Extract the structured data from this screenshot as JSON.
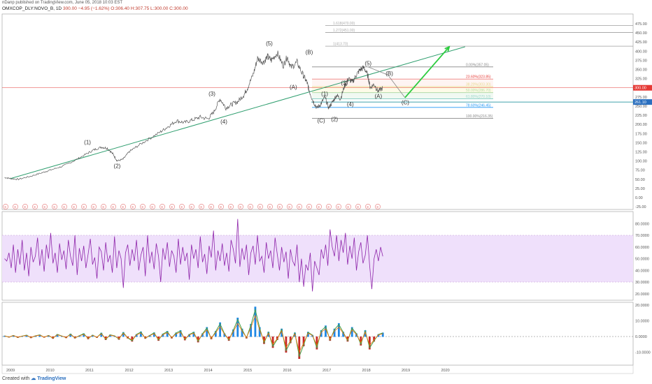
{
  "header": {
    "published_line": "nDanp published on TradingView.com, June 05, 2018 10:03 EST",
    "symbol_line": "OMXCOP_DLY:NOVO_B, 1D",
    "last": "300.00",
    "change": "−4.95 (−1.62%)",
    "open": "O:306.40",
    "high": "H:307.75",
    "low": "L:300.00",
    "close": "C:300.00"
  },
  "footer": {
    "created_with": "Created with",
    "brand": "TradingView"
  },
  "colors": {
    "price": "#555555",
    "trendline": "#2e9e6e",
    "projection_arrow": "#2ecc40",
    "rsi_line": "#8e24aa",
    "rsi_band": "#efe0fb",
    "fib_0": "#888888",
    "fib_236": "#e53935",
    "fib_382": "#c7b800",
    "fib_500": "#4caf50",
    "fib_618": "#26a69a",
    "fib_786": "#2196f3",
    "fib_100": "#888888",
    "current_price_line": "#e53935",
    "label_box": "#2a6fbf"
  },
  "chart_data": [
    {
      "type": "line",
      "name_display": "price",
      "x_axis_labels": [
        "2009",
        "2010",
        "2011",
        "2012",
        "2013",
        "2014",
        "2015",
        "2016",
        "2017",
        "2018",
        "2019",
        "2020"
      ],
      "x_years": [
        2009,
        2010,
        2011,
        2012,
        2013,
        2014,
        2015,
        2016,
        2017,
        2018,
        2019,
        2020
      ],
      "y_ticks": [
        475,
        450,
        425,
        400,
        375,
        350,
        325,
        300,
        275,
        250,
        225,
        200,
        175,
        150,
        125,
        100,
        75,
        50,
        25,
        0,
        -25
      ],
      "y_tick_labels": [
        "475.00",
        "450.00",
        "425.00",
        "400.00",
        "375.00",
        "350.00",
        "325.00",
        "300.00",
        "275.00",
        "250.00",
        "225.00",
        "200.00",
        "175.00",
        "150.00",
        "125.00",
        "100.00",
        "75.00",
        "50.00",
        "25.00",
        "0.00",
        "-25.00"
      ],
      "ylim": [
        -30,
        490
      ],
      "series": [
        {
          "x": [
            2008.85,
            2009.0,
            2009.2,
            2009.5,
            2009.8,
            2010.0,
            2010.3,
            2010.6,
            2010.9,
            2011.1,
            2011.3,
            2011.45,
            2011.6,
            2011.7,
            2011.85,
            2012.0,
            2012.2,
            2012.5,
            2012.8,
            2013.0,
            2013.2,
            2013.4,
            2013.6,
            2013.8,
            2014.0,
            2014.15,
            2014.3,
            2014.45,
            2014.6,
            2014.75,
            2014.9,
            2015.0,
            2015.15,
            2015.25,
            2015.4,
            2015.5,
            2015.6,
            2015.75,
            2015.9,
            2016.0,
            2016.1,
            2016.25,
            2016.4,
            2016.5,
            2016.55,
            2016.65,
            2016.75,
            2016.85,
            2016.95,
            2017.05,
            2017.15,
            2017.25,
            2017.35,
            2017.45,
            2017.55,
            2017.65,
            2017.75,
            2017.85,
            2017.95,
            2018.05,
            2018.1,
            2018.2,
            2018.3,
            2018.42
          ],
          "values": [
            55,
            52,
            50,
            58,
            68,
            75,
            85,
            100,
            118,
            130,
            138,
            135,
            118,
            100,
            105,
            125,
            140,
            160,
            180,
            195,
            210,
            205,
            212,
            220,
            215,
            235,
            270,
            245,
            255,
            262,
            280,
            300,
            340,
            380,
            370,
            385,
            375,
            395,
            360,
            385,
            355,
            370,
            335,
            315,
            295,
            265,
            245,
            255,
            275,
            245,
            262,
            280,
            270,
            305,
            325,
            315,
            335,
            350,
            355,
            330,
            300,
            310,
            290,
            300
          ]
        }
      ],
      "trendline": {
        "x": [
          2009.0,
          2020.5
        ],
        "values": [
          52,
          412
        ]
      },
      "wave_labels": [
        {
          "text": "(1)",
          "x": 2010.95,
          "y": 152
        },
        {
          "text": "(2)",
          "x": 2011.7,
          "y": 87
        },
        {
          "text": "(3)",
          "x": 2014.1,
          "y": 284
        },
        {
          "text": "(4)",
          "x": 2014.4,
          "y": 208
        },
        {
          "text": "(5)",
          "x": 2015.55,
          "y": 422
        },
        {
          "text": "(A)",
          "x": 2016.15,
          "y": 302
        },
        {
          "text": "(B)",
          "x": 2016.55,
          "y": 398
        },
        {
          "text": "(C)",
          "x": 2016.85,
          "y": 211
        },
        {
          "text": "(1)",
          "x": 2016.95,
          "y": 284
        },
        {
          "text": "(2)",
          "x": 2017.2,
          "y": 215
        },
        {
          "text": "(3)",
          "x": 2017.45,
          "y": 314
        },
        {
          "text": "(4)",
          "x": 2017.6,
          "y": 256
        },
        {
          "text": "(5)",
          "x": 2018.05,
          "y": 367
        },
        {
          "text": "(A)",
          "x": 2018.3,
          "y": 278
        },
        {
          "text": "(B)",
          "x": 2018.58,
          "y": 340
        },
        {
          "text": "(C)",
          "x": 2018.98,
          "y": 260
        }
      ],
      "projection_path": {
        "x": [
          2018.05,
          2018.55,
          2018.98
        ],
        "values": [
          357,
          335,
          273
        ]
      },
      "projection_arrow": {
        "x": [
          2018.98,
          2020.1
        ],
        "values": [
          273,
          412
        ]
      },
      "fibonacci": [
        {
          "label": "0.00%(357.05)",
          "value": 357.05,
          "color": "#888888"
        },
        {
          "label": "23.60%(323.85)",
          "value": 323.85,
          "color": "#e53935"
        },
        {
          "label": "38.20%(303.30)",
          "value": 303.3,
          "color": "#c7b800"
        },
        {
          "label": "50.00%(286.70)",
          "value": 286.7,
          "color": "#4caf50"
        },
        {
          "label": "61.80%(270.10)",
          "value": 270.1,
          "color": "#26a69a"
        },
        {
          "label": "78.60%(246.45)",
          "value": 246.45,
          "color": "#2196f3"
        },
        {
          "label": "100.00%(216.35)",
          "value": 216.35,
          "color": "#888888"
        }
      ],
      "extensions": [
        {
          "label": "1.618(470.00)",
          "value": 470.0
        },
        {
          "label": "1.272(451.00)",
          "value": 451.0
        },
        {
          "label": "1(413.70)",
          "value": 413.7
        }
      ],
      "current_price": "300.00",
      "marked_level": "261.10",
      "earnings_marker": "E"
    },
    {
      "type": "line",
      "name_display": "rsi",
      "y_ticks": [
        80,
        70,
        60,
        50,
        40,
        30,
        20
      ],
      "y_tick_labels": [
        "80.0000",
        "70.0000",
        "60.0000",
        "50.0000",
        "40.0000",
        "30.0000",
        "20.0000"
      ],
      "ylim": [
        15,
        88
      ],
      "band": [
        30,
        70
      ],
      "x_range": [
        2008.85,
        2018.42
      ],
      "series": [
        {
          "values": [
            50,
            48,
            55,
            42,
            62,
            38,
            58,
            45,
            66,
            40,
            55,
            35,
            60,
            47,
            52,
            68,
            44,
            58,
            39,
            62,
            50,
            72,
            46,
            55,
            38,
            63,
            49,
            57,
            41,
            66,
            52,
            44,
            70,
            36,
            59,
            48,
            61,
            42,
            54,
            67,
            45,
            51,
            33,
            60,
            56,
            40,
            64,
            47,
            53,
            38,
            69,
            42,
            57,
            50,
            25,
            55,
            62,
            44,
            58,
            48,
            66,
            40,
            53,
            60,
            35,
            70,
            46,
            56,
            41,
            63,
            52,
            30,
            59,
            49,
            64,
            43,
            57,
            52,
            38,
            67,
            45,
            60,
            48,
            55,
            32,
            62,
            50,
            58,
            42,
            69,
            47,
            54,
            37,
            61,
            51,
            74,
            40,
            57,
            48,
            63,
            44,
            55,
            39,
            66,
            58,
            46,
            84,
            43,
            59,
            49,
            62,
            36,
            55,
            61,
            45,
            70,
            48,
            52,
            38,
            64,
            50,
            57,
            42,
            68,
            54,
            40,
            60,
            47,
            56,
            33,
            58,
            48,
            44,
            62,
            30,
            50,
            26,
            45,
            40,
            55,
            22,
            48,
            42,
            36,
            58,
            50,
            62,
            44,
            75,
            60,
            52,
            70,
            48,
            66,
            55,
            72,
            45,
            61,
            50,
            68,
            40,
            56,
            64,
            46,
            53,
            70,
            44,
            24,
            50,
            58,
            48,
            60,
            52
          ]
        }
      ]
    },
    {
      "type": "line",
      "name_display": "oscillator",
      "y_ticks": [
        20,
        10,
        0,
        -10
      ],
      "y_tick_labels": [
        "20.0000",
        "10.0000",
        "0.0000",
        "-10.0000"
      ],
      "ylim": [
        -17,
        23
      ],
      "x_range": [
        2008.85,
        2018.42
      ],
      "series": [
        {
          "values": [
            0.5,
            -0.4,
            0.8,
            -0.6,
            0.3,
            1.0,
            -0.8,
            0.5,
            1.2,
            -0.5,
            0.8,
            -1.2,
            1.5,
            0.4,
            -0.8,
            1.8,
            -1.0,
            0.6,
            2.0,
            -1.5,
            1.0,
            -0.6,
            2.4,
            -2.0,
            1.2,
            0.5,
            -1.8,
            2.8,
            -1.0,
            -3.0,
            1.5,
            3.2,
            -1.2,
            0.8,
            2.6,
            -2.5,
            1.8,
            3.5,
            -1.0,
            2.5,
            4.0,
            -2.2,
            1.5,
            3.0,
            -3.5,
            2.0,
            6.0,
            -1.5,
            3.5,
            9.0,
            2.0,
            -2.5,
            4.5,
            12.0,
            5.0,
            -1.0,
            8.0,
            19.0,
            6.0,
            -4.5,
            3.0,
            -7.0,
            -2.0,
            5.0,
            -10.0,
            -4.0,
            2.5,
            -14.0,
            -6.0,
            3.0,
            1.0,
            -8.0,
            4.0,
            7.0,
            -2.5,
            5.0,
            8.5,
            3.0,
            -3.0,
            6.0,
            2.0,
            -5.5,
            4.0,
            -8.0,
            -3.0,
            1.5,
            2.5
          ]
        }
      ]
    }
  ]
}
